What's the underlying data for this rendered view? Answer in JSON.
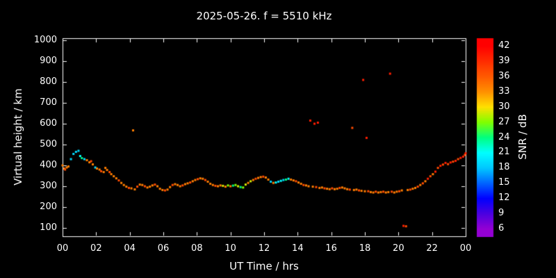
{
  "chart_data": {
    "type": "scatter",
    "title": "2025-05-26. f = 5510 kHz",
    "xlabel": "UT Time / hrs",
    "ylabel": "Virtual height / km",
    "xlim": [
      0,
      24
    ],
    "ylim": [
      100,
      1000
    ],
    "background_color": "#000000",
    "frame_color": "#ffffff",
    "x_ticks": {
      "values": [
        0,
        2,
        4,
        6,
        8,
        10,
        12,
        14,
        16,
        18,
        20,
        22,
        24
      ],
      "labels": [
        "00",
        "02",
        "04",
        "06",
        "08",
        "10",
        "12",
        "14",
        "16",
        "18",
        "20",
        "22",
        "00"
      ]
    },
    "y_ticks": {
      "values": [
        100,
        200,
        300,
        400,
        500,
        600,
        700,
        800,
        900,
        1000
      ],
      "labels": [
        "100",
        "200",
        "300",
        "400",
        "500",
        "600",
        "700",
        "800",
        "900",
        "1000"
      ]
    },
    "colorbar": {
      "label": "SNR / dB",
      "ticks": [
        42,
        39,
        36,
        33,
        30,
        27,
        24,
        21,
        18,
        15,
        12,
        9,
        6
      ],
      "range": [
        4.5,
        43.5
      ],
      "stops": [
        [
          6,
          "#9400d3"
        ],
        [
          9,
          "#4b00e0"
        ],
        [
          12,
          "#0000ff"
        ],
        [
          15,
          "#0064ff"
        ],
        [
          18,
          "#00c8ff"
        ],
        [
          21,
          "#00ffff"
        ],
        [
          24,
          "#00ff80"
        ],
        [
          27,
          "#80ff00"
        ],
        [
          30,
          "#ffe000"
        ],
        [
          33,
          "#ff9000"
        ],
        [
          36,
          "#ff5a00"
        ],
        [
          39,
          "#ff2d00"
        ],
        [
          42,
          "#ff0000"
        ]
      ]
    },
    "series": [
      {
        "name": "echo-trace",
        "point_format": [
          "ut_hrs",
          "virtual_height_km",
          "snr_db"
        ],
        "points": [
          [
            0.0,
            400,
            34
          ],
          [
            0.1,
            385,
            34
          ],
          [
            0.15,
            380,
            37
          ],
          [
            0.25,
            390,
            34
          ],
          [
            0.35,
            395,
            34
          ],
          [
            0.5,
            430,
            19
          ],
          [
            0.65,
            455,
            19
          ],
          [
            0.8,
            465,
            19
          ],
          [
            0.95,
            470,
            19
          ],
          [
            1.05,
            445,
            21
          ],
          [
            1.15,
            435,
            24
          ],
          [
            1.3,
            430,
            19
          ],
          [
            1.45,
            425,
            34
          ],
          [
            1.6,
            415,
            34
          ],
          [
            1.7,
            420,
            37
          ],
          [
            1.8,
            405,
            34
          ],
          [
            1.95,
            390,
            19
          ],
          [
            2.05,
            385,
            34
          ],
          [
            2.2,
            380,
            34
          ],
          [
            2.3,
            372,
            37
          ],
          [
            2.45,
            368,
            34
          ],
          [
            2.55,
            388,
            34
          ],
          [
            2.65,
            378,
            34
          ],
          [
            2.8,
            368,
            37
          ],
          [
            2.9,
            358,
            34
          ],
          [
            3.05,
            348,
            34
          ],
          [
            3.2,
            338,
            34
          ],
          [
            3.35,
            328,
            37
          ],
          [
            3.5,
            316,
            34
          ],
          [
            3.65,
            306,
            34
          ],
          [
            3.8,
            298,
            34
          ],
          [
            3.95,
            292,
            37
          ],
          [
            4.1,
            290,
            34
          ],
          [
            4.2,
            568,
            34
          ],
          [
            4.3,
            285,
            34
          ],
          [
            4.45,
            298,
            37
          ],
          [
            4.6,
            308,
            34
          ],
          [
            4.75,
            306,
            34
          ],
          [
            4.9,
            300,
            37
          ],
          [
            5.05,
            294,
            34
          ],
          [
            5.2,
            298,
            34
          ],
          [
            5.35,
            304,
            34
          ],
          [
            5.5,
            308,
            37
          ],
          [
            5.65,
            300,
            34
          ],
          [
            5.8,
            288,
            34
          ],
          [
            5.95,
            282,
            34
          ],
          [
            6.1,
            280,
            37
          ],
          [
            6.25,
            284,
            34
          ],
          [
            6.4,
            296,
            34
          ],
          [
            6.55,
            306,
            37
          ],
          [
            6.7,
            310,
            34
          ],
          [
            6.85,
            306,
            34
          ],
          [
            7.0,
            300,
            34
          ],
          [
            7.15,
            304,
            37
          ],
          [
            7.3,
            310,
            34
          ],
          [
            7.45,
            314,
            34
          ],
          [
            7.6,
            318,
            37
          ],
          [
            7.75,
            324,
            34
          ],
          [
            7.9,
            330,
            34
          ],
          [
            8.05,
            334,
            37
          ],
          [
            8.2,
            338,
            34
          ],
          [
            8.35,
            336,
            34
          ],
          [
            8.5,
            330,
            37
          ],
          [
            8.65,
            322,
            34
          ],
          [
            8.8,
            312,
            34
          ],
          [
            8.95,
            306,
            34
          ],
          [
            9.1,
            302,
            37
          ],
          [
            9.25,
            300,
            34
          ],
          [
            9.4,
            304,
            34
          ],
          [
            9.55,
            302,
            29
          ],
          [
            9.7,
            298,
            34
          ],
          [
            9.85,
            304,
            27
          ],
          [
            10.0,
            300,
            34
          ],
          [
            10.15,
            303,
            24
          ],
          [
            10.3,
            306,
            27
          ],
          [
            10.45,
            300,
            29
          ],
          [
            10.6,
            296,
            24
          ],
          [
            10.75,
            294,
            27
          ],
          [
            10.9,
            308,
            29
          ],
          [
            11.05,
            316,
            34
          ],
          [
            11.2,
            324,
            29
          ],
          [
            11.35,
            330,
            34
          ],
          [
            11.5,
            336,
            37
          ],
          [
            11.65,
            340,
            34
          ],
          [
            11.8,
            344,
            34
          ],
          [
            11.95,
            346,
            37
          ],
          [
            12.1,
            342,
            34
          ],
          [
            12.25,
            332,
            34
          ],
          [
            12.4,
            322,
            19
          ],
          [
            12.55,
            316,
            34
          ],
          [
            12.7,
            318,
            21
          ],
          [
            12.85,
            322,
            19
          ],
          [
            13.0,
            326,
            21
          ],
          [
            13.15,
            330,
            19
          ],
          [
            13.3,
            332,
            24
          ],
          [
            13.45,
            336,
            21
          ],
          [
            13.6,
            332,
            34
          ],
          [
            13.75,
            328,
            34
          ],
          [
            13.9,
            324,
            37
          ],
          [
            14.05,
            318,
            34
          ],
          [
            14.2,
            312,
            34
          ],
          [
            14.35,
            306,
            37
          ],
          [
            14.5,
            304,
            34
          ],
          [
            14.65,
            300,
            34
          ],
          [
            14.75,
            615,
            40
          ],
          [
            14.9,
            298,
            34
          ],
          [
            15.0,
            600,
            40
          ],
          [
            15.1,
            296,
            37
          ],
          [
            15.2,
            605,
            40
          ],
          [
            15.3,
            292,
            34
          ],
          [
            15.45,
            294,
            34
          ],
          [
            15.6,
            290,
            37
          ],
          [
            15.75,
            288,
            34
          ],
          [
            15.9,
            286,
            34
          ],
          [
            16.05,
            290,
            37
          ],
          [
            16.2,
            286,
            34
          ],
          [
            16.35,
            288,
            34
          ],
          [
            16.5,
            292,
            37
          ],
          [
            16.65,
            294,
            34
          ],
          [
            16.8,
            290,
            34
          ],
          [
            16.95,
            286,
            34
          ],
          [
            17.1,
            284,
            37
          ],
          [
            17.25,
            580,
            37
          ],
          [
            17.35,
            282,
            34
          ],
          [
            17.5,
            284,
            34
          ],
          [
            17.65,
            280,
            37
          ],
          [
            17.8,
            278,
            34
          ],
          [
            17.9,
            810,
            40
          ],
          [
            18.0,
            276,
            34
          ],
          [
            18.1,
            532,
            40
          ],
          [
            18.2,
            276,
            37
          ],
          [
            18.35,
            272,
            34
          ],
          [
            18.5,
            270,
            34
          ],
          [
            18.65,
            274,
            37
          ],
          [
            18.8,
            270,
            34
          ],
          [
            18.95,
            272,
            34
          ],
          [
            19.1,
            274,
            37
          ],
          [
            19.25,
            270,
            34
          ],
          [
            19.4,
            272,
            34
          ],
          [
            19.5,
            840,
            40
          ],
          [
            19.6,
            274,
            37
          ],
          [
            19.75,
            270,
            34
          ],
          [
            19.9,
            274,
            34
          ],
          [
            20.05,
            276,
            37
          ],
          [
            20.2,
            280,
            34
          ],
          [
            20.3,
            110,
            40
          ],
          [
            20.45,
            108,
            37
          ],
          [
            20.55,
            282,
            34
          ],
          [
            20.7,
            284,
            37
          ],
          [
            20.85,
            288,
            34
          ],
          [
            21.0,
            292,
            34
          ],
          [
            21.15,
            298,
            37
          ],
          [
            21.3,
            306,
            34
          ],
          [
            21.45,
            314,
            37
          ],
          [
            21.6,
            324,
            34
          ],
          [
            21.75,
            336,
            40
          ],
          [
            21.9,
            348,
            37
          ],
          [
            22.05,
            358,
            34
          ],
          [
            22.2,
            370,
            40
          ],
          [
            22.35,
            388,
            37
          ],
          [
            22.5,
            398,
            40
          ],
          [
            22.65,
            404,
            37
          ],
          [
            22.8,
            412,
            40
          ],
          [
            22.95,
            406,
            37
          ],
          [
            23.1,
            414,
            40
          ],
          [
            23.25,
            418,
            37
          ],
          [
            23.4,
            422,
            40
          ],
          [
            23.55,
            430,
            37
          ],
          [
            23.7,
            436,
            40
          ],
          [
            23.85,
            442,
            40
          ],
          [
            23.95,
            450,
            37
          ],
          [
            24.0,
            458,
            40
          ]
        ]
      }
    ]
  }
}
